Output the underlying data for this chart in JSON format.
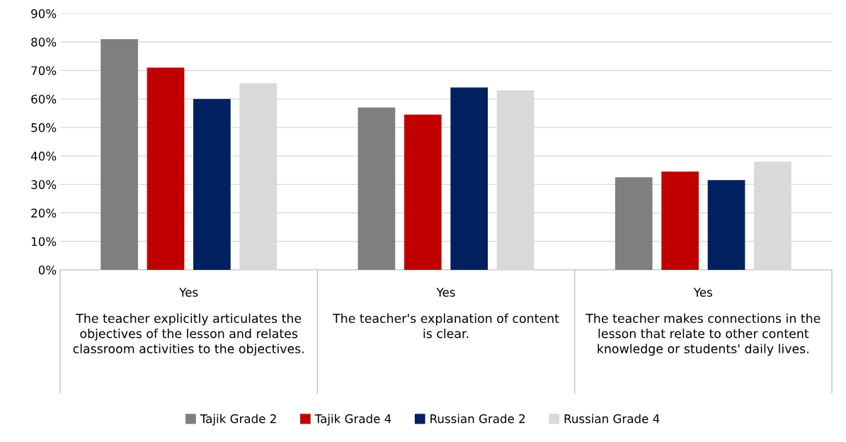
{
  "chart_data": {
    "type": "bar",
    "categories": [
      "Yes",
      "Yes",
      "Yes"
    ],
    "series": [
      {
        "name": "Tajik Grade 2",
        "color": "#7f7f7f",
        "values": [
          0.81,
          0.57,
          0.325
        ]
      },
      {
        "name": "Tajik Grade 4",
        "color": "#c00000",
        "values": [
          0.71,
          0.545,
          0.345
        ]
      },
      {
        "name": "Russian Grade 2",
        "color": "#002060",
        "values": [
          0.6,
          0.64,
          0.315
        ]
      },
      {
        "name": "Russian Grade 4",
        "color": "#d9d9d9",
        "values": [
          0.655,
          0.63,
          0.38
        ]
      }
    ],
    "annotations": [
      "The teacher explicitly articulates the objectives of the lesson and relates classroom activities to the objectives.",
      "The teacher's explanation of content is clear.",
      "The teacher makes connections in the lesson that relate to other content knowledge or students' daily lives."
    ],
    "ylim": [
      0,
      0.9
    ],
    "yticks": [
      {
        "value": 0,
        "label": "0%"
      },
      {
        "value": 0.1,
        "label": "10%"
      },
      {
        "value": 0.2,
        "label": "20%"
      },
      {
        "value": 0.3,
        "label": "30%"
      },
      {
        "value": 0.4,
        "label": "40%"
      },
      {
        "value": 0.5,
        "label": "50%"
      },
      {
        "value": 0.6,
        "label": "60%"
      },
      {
        "value": 0.7,
        "label": "70%"
      },
      {
        "value": 0.8,
        "label": "80%"
      },
      {
        "value": 0.9,
        "label": "90%"
      }
    ],
    "grid": "y",
    "legend": "bottom"
  }
}
